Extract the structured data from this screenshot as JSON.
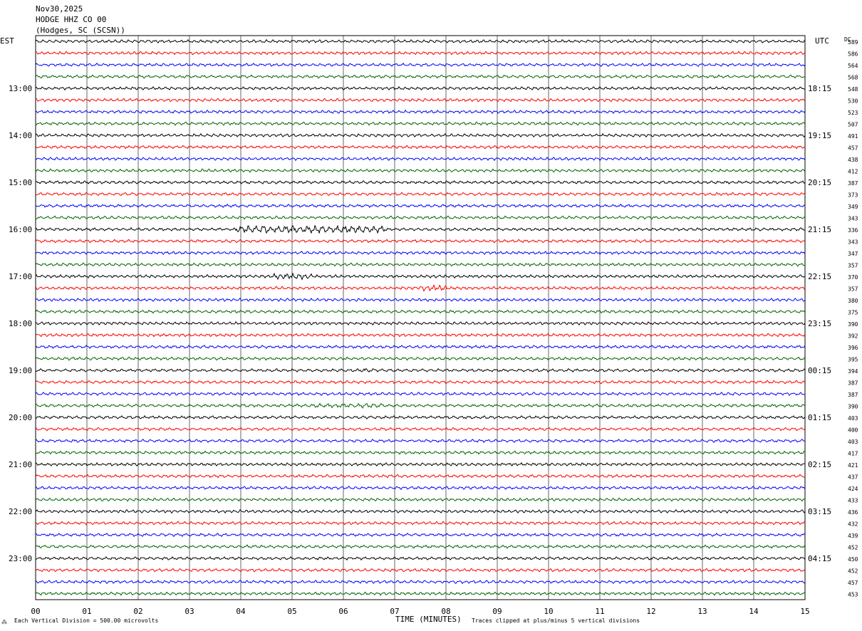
{
  "header": {
    "date": "Nov30,2025",
    "station": "HODGE HHZ CO 00",
    "location": "(Hodges, SC (SCSN))"
  },
  "left_axis_label": "EST",
  "right_axis_label": "UTC",
  "dc_label": "DC",
  "left_time_labels": [
    "13:00",
    "14:00",
    "15:00",
    "16:00",
    "17:00",
    "18:00",
    "19:00",
    "20:00",
    "21:00",
    "22:00",
    "23:00"
  ],
  "right_time_labels": [
    "18:15",
    "19:15",
    "20:15",
    "21:15",
    "22:15",
    "23:15",
    "00:15",
    "01:15",
    "02:15",
    "03:15",
    "04:15"
  ],
  "dc_offsets": [
    589,
    586,
    564,
    568,
    548,
    530,
    523,
    507,
    491,
    457,
    438,
    412,
    387,
    373,
    349,
    343,
    336,
    343,
    347,
    357,
    370,
    357,
    380,
    375,
    390,
    392,
    396,
    395,
    394,
    387,
    387,
    390,
    403,
    400,
    403,
    417,
    421,
    437,
    424,
    433,
    436,
    432,
    439,
    452,
    450,
    452,
    457,
    453
  ],
  "x_ticks": [
    "00",
    "01",
    "02",
    "03",
    "04",
    "05",
    "06",
    "07",
    "08",
    "09",
    "10",
    "11",
    "12",
    "13",
    "14",
    "15"
  ],
  "x_axis_title": "TIME (MINUTES)",
  "footer": {
    "scale_note": "Each Vertical Division =  500.00 microvolts",
    "clip_note": "Traces clipped at plus/minus 5 vertical divisions"
  },
  "chart_data": {
    "type": "line",
    "description_source": "helicorder",
    "trace_count": 48,
    "minutes_per_trace": 15,
    "xlim": [
      0,
      15
    ],
    "trace_colors": [
      "#000000",
      "#ff0000",
      "#0000ff",
      "#006400"
    ],
    "grid": "vertical lines every minute",
    "events": [
      {
        "trace_index": 16,
        "start_minute": 3.9,
        "end_minute": 6.8,
        "amplitude": "high"
      },
      {
        "trace_index": 20,
        "start_minute": 4.6,
        "end_minute": 5.4,
        "amplitude": "medium"
      },
      {
        "trace_index": 21,
        "start_minute": 7.5,
        "end_minute": 8.0,
        "amplitude": "medium"
      },
      {
        "trace_index": 28,
        "start_minute": 6.3,
        "end_minute": 6.6,
        "amplitude": "low"
      },
      {
        "trace_index": 31,
        "start_minute": 5.3,
        "end_minute": 6.8,
        "amplitude": "low"
      }
    ]
  }
}
